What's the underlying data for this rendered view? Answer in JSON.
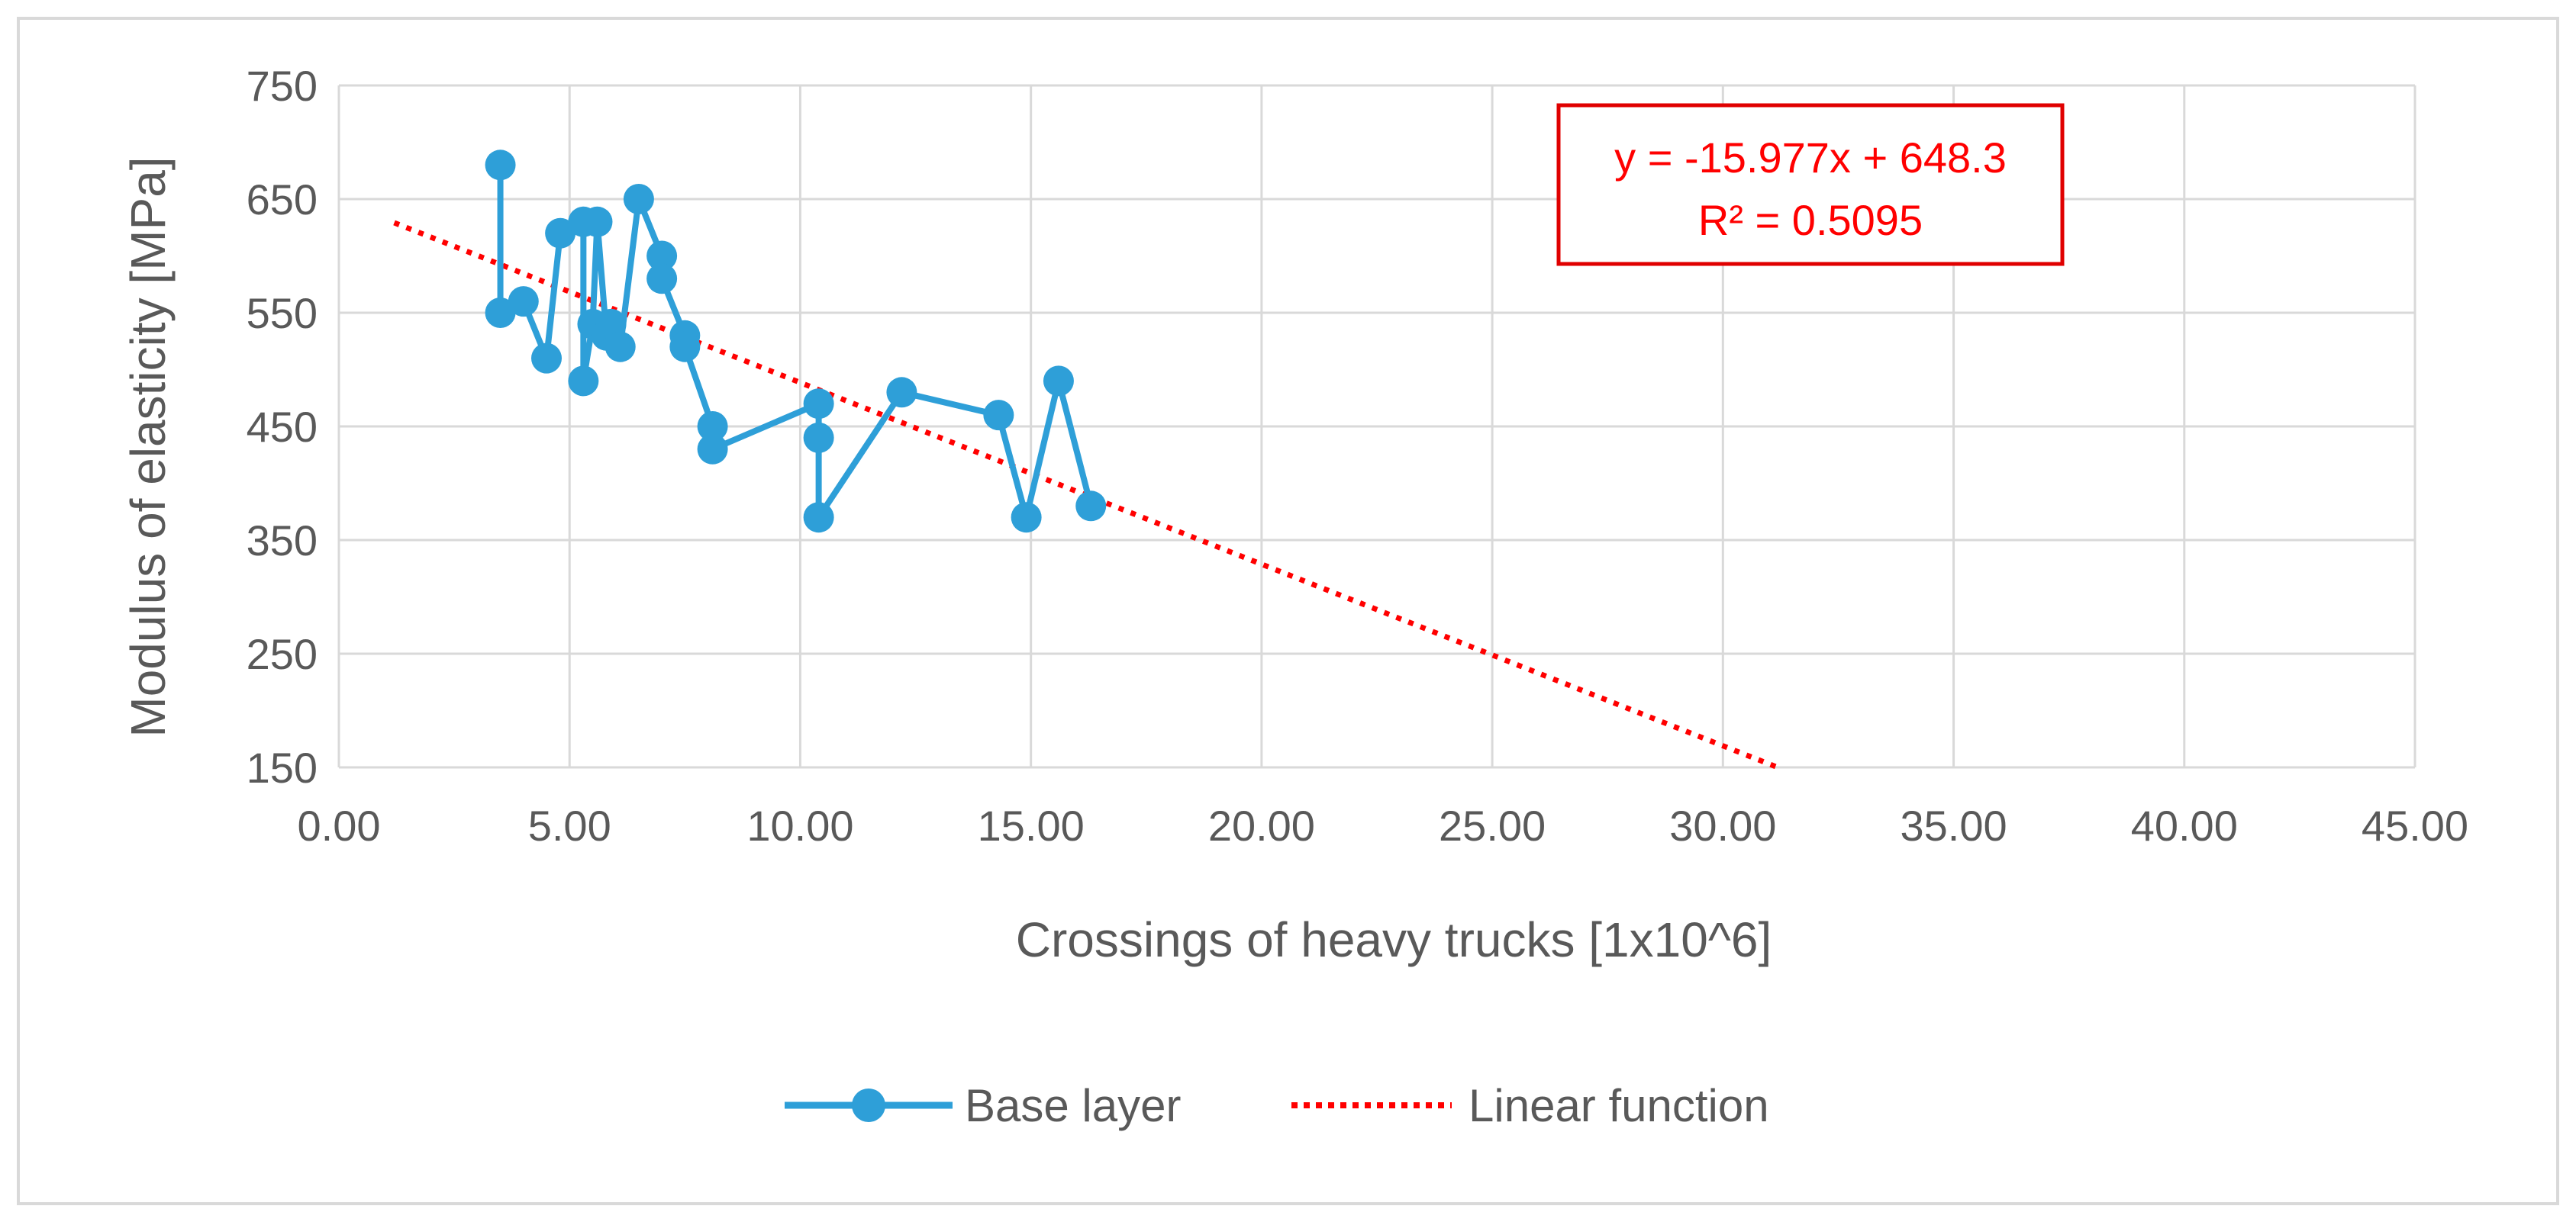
{
  "chart_data": {
    "type": "scatter",
    "xlabel": "Crossings of heavy trucks [1x10^6]",
    "ylabel": "Modulus of elasticity [MPa]",
    "xlim": [
      0,
      45
    ],
    "ylim": [
      150,
      750
    ],
    "x_ticks": [
      "0.00",
      "5.00",
      "10.00",
      "15.00",
      "20.00",
      "25.00",
      "30.00",
      "35.00",
      "40.00",
      "45.00"
    ],
    "y_ticks": [
      "150",
      "250",
      "350",
      "450",
      "550",
      "650",
      "750"
    ],
    "grid": true,
    "legend_position": "bottom",
    "series": [
      {
        "name": "Base layer",
        "color": "#2e9fd8",
        "style": "line-with-markers",
        "x": [
          3.5,
          3.5,
          4.0,
          4.5,
          4.8,
          5.3,
          5.3,
          5.5,
          5.6,
          5.8,
          5.9,
          6.1,
          6.5,
          7.0,
          7.0,
          7.5,
          7.5,
          8.1,
          8.1,
          10.4,
          10.4,
          10.4,
          12.2,
          14.3,
          14.9,
          15.6,
          16.3
        ],
        "y": [
          680,
          550,
          560,
          510,
          620,
          630,
          490,
          540,
          630,
          530,
          540,
          520,
          650,
          600,
          580,
          530,
          520,
          450,
          430,
          470,
          440,
          370,
          480,
          460,
          370,
          490,
          380
        ]
      },
      {
        "name": "Linear function",
        "color": "#ff0000",
        "style": "dotted-line",
        "x": [
          1.2,
          31.2
        ],
        "y": [
          629.2,
          149.8
        ]
      }
    ],
    "annotation": {
      "equation": "y = -15.977x + 648.3",
      "r_squared": "R² = 0.5095",
      "color": "#ff0000"
    }
  }
}
